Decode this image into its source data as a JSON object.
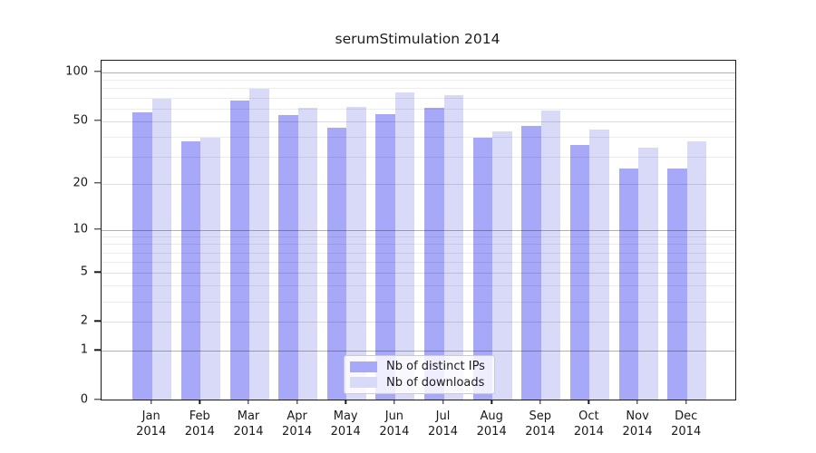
{
  "chart_data": {
    "type": "bar",
    "title": "serumStimulation 2014",
    "xlabel": "",
    "ylabel": "",
    "categories": [
      {
        "month": "Jan",
        "year": "2014"
      },
      {
        "month": "Feb",
        "year": "2014"
      },
      {
        "month": "Mar",
        "year": "2014"
      },
      {
        "month": "Apr",
        "year": "2014"
      },
      {
        "month": "May",
        "year": "2014"
      },
      {
        "month": "Jun",
        "year": "2014"
      },
      {
        "month": "Jul",
        "year": "2014"
      },
      {
        "month": "Aug",
        "year": "2014"
      },
      {
        "month": "Sep",
        "year": "2014"
      },
      {
        "month": "Oct",
        "year": "2014"
      },
      {
        "month": "Nov",
        "year": "2014"
      },
      {
        "month": "Dec",
        "year": "2014"
      }
    ],
    "series": [
      {
        "name": "Nb of distinct IPs",
        "color": "#a8a8f8",
        "values": [
          56,
          37,
          67,
          54,
          45,
          55,
          60,
          39,
          46,
          35,
          25,
          25
        ]
      },
      {
        "name": "Nb of downloads",
        "color": "#d9d9f8",
        "values": [
          68,
          39,
          79,
          60,
          61,
          75,
          72,
          43,
          58,
          44,
          34,
          37
        ]
      }
    ],
    "yscale": "log10(value+1)",
    "ylim": [
      0,
      118
    ],
    "ytick_values": [
      0,
      1,
      2,
      5,
      10,
      20,
      50,
      100
    ],
    "ytick_decade_values": [
      1,
      10,
      100
    ],
    "minor_gridline_values": [
      3,
      4,
      6,
      7,
      8,
      9,
      30,
      40,
      60,
      70,
      80,
      90
    ],
    "grid": "horizontal",
    "legend": {
      "position": "lower-center",
      "entries": [
        "Nb of distinct IPs",
        "Nb of downloads"
      ]
    },
    "background": "#ffffff"
  }
}
